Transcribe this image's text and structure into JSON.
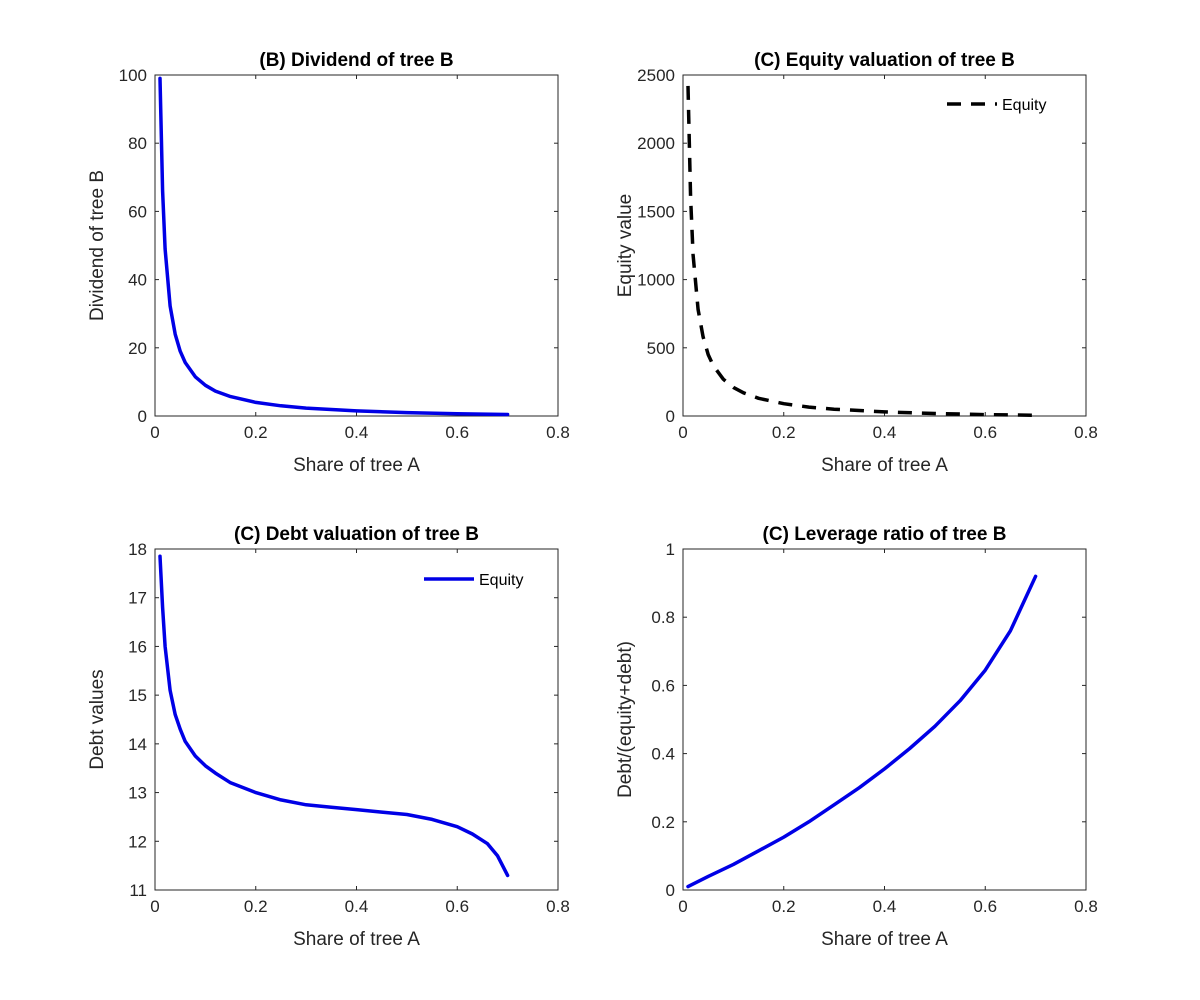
{
  "chart_data": [
    {
      "type": "line",
      "title": "(B) Dividend of tree B",
      "xlabel": "Share of tree A",
      "ylabel": "Dividend of tree B",
      "xlim": [
        0,
        0.8
      ],
      "ylim": [
        0,
        100
      ],
      "xticks": [
        0,
        0.2,
        0.4,
        0.6,
        0.8
      ],
      "yticks": [
        0,
        20,
        40,
        60,
        80,
        100
      ],
      "xtick_labels": [
        "0",
        "0.2",
        "0.4",
        "0.6",
        "0.8"
      ],
      "ytick_labels": [
        "0",
        "20",
        "40",
        "60",
        "80",
        "100"
      ],
      "grid": false,
      "legend": null,
      "series": [
        {
          "name": "",
          "color": "#0000e6",
          "style": "solid",
          "x": [
            0.01,
            0.015,
            0.02,
            0.03,
            0.04,
            0.05,
            0.06,
            0.08,
            0.1,
            0.12,
            0.15,
            0.2,
            0.25,
            0.3,
            0.4,
            0.5,
            0.6,
            0.7
          ],
          "y": [
            99,
            66,
            49,
            32.3,
            24,
            19,
            15.7,
            11.5,
            9,
            7.3,
            5.7,
            4,
            3,
            2.33,
            1.5,
            1,
            0.67,
            0.43
          ]
        }
      ]
    },
    {
      "type": "line",
      "title": "(C) Equity valuation of tree B",
      "xlabel": "Share of tree A",
      "ylabel": "Equity value",
      "xlim": [
        0,
        0.8
      ],
      "ylim": [
        0,
        2500
      ],
      "xticks": [
        0,
        0.2,
        0.4,
        0.6,
        0.8
      ],
      "yticks": [
        0,
        500,
        1000,
        1500,
        2000,
        2500
      ],
      "xtick_labels": [
        "0",
        "0.2",
        "0.4",
        "0.6",
        "0.8"
      ],
      "ytick_labels": [
        "0",
        "500",
        "1000",
        "1500",
        "2000",
        "2500"
      ],
      "grid": false,
      "legend": "top-right",
      "series": [
        {
          "name": "Equity",
          "color": "#000000",
          "style": "dashed",
          "x": [
            0.01,
            0.015,
            0.02,
            0.03,
            0.04,
            0.05,
            0.06,
            0.08,
            0.1,
            0.12,
            0.15,
            0.2,
            0.25,
            0.3,
            0.4,
            0.5,
            0.6,
            0.7
          ],
          "y": [
            2420,
            1600,
            1180,
            780,
            580,
            450,
            370,
            270,
            210,
            170,
            130,
            90,
            65,
            50,
            30,
            18,
            10,
            5
          ]
        }
      ]
    },
    {
      "type": "line",
      "title": "(C) Debt valuation of tree B",
      "xlabel": "Share of tree A",
      "ylabel": "Debt values",
      "xlim": [
        0,
        0.8
      ],
      "ylim": [
        11,
        18
      ],
      "xticks": [
        0,
        0.2,
        0.4,
        0.6,
        0.8
      ],
      "yticks": [
        11,
        12,
        13,
        14,
        15,
        16,
        17,
        18
      ],
      "xtick_labels": [
        "0",
        "0.2",
        "0.4",
        "0.6",
        "0.8"
      ],
      "ytick_labels": [
        "11",
        "12",
        "13",
        "14",
        "15",
        "16",
        "17",
        "18"
      ],
      "grid": false,
      "legend": "top-right",
      "series": [
        {
          "name": "Equity",
          "color": "#0000e6",
          "style": "solid",
          "x": [
            0.01,
            0.015,
            0.02,
            0.03,
            0.04,
            0.05,
            0.06,
            0.08,
            0.1,
            0.12,
            0.15,
            0.2,
            0.25,
            0.3,
            0.35,
            0.4,
            0.45,
            0.5,
            0.55,
            0.6,
            0.63,
            0.66,
            0.68,
            0.7
          ],
          "y": [
            17.85,
            16.8,
            16.0,
            15.1,
            14.6,
            14.3,
            14.05,
            13.75,
            13.55,
            13.4,
            13.2,
            13.0,
            12.85,
            12.75,
            12.7,
            12.65,
            12.6,
            12.55,
            12.45,
            12.3,
            12.15,
            11.95,
            11.7,
            11.3
          ]
        }
      ]
    },
    {
      "type": "line",
      "title": "(C) Leverage ratio of tree B",
      "xlabel": "Share of tree A",
      "ylabel": "Debt/(equity+debt)",
      "xlim": [
        0,
        0.8
      ],
      "ylim": [
        0,
        1
      ],
      "xticks": [
        0,
        0.2,
        0.4,
        0.6,
        0.8
      ],
      "yticks": [
        0,
        0.2,
        0.4,
        0.6,
        0.8,
        1
      ],
      "xtick_labels": [
        "0",
        "0.2",
        "0.4",
        "0.6",
        "0.8"
      ],
      "ytick_labels": [
        "0",
        "0.2",
        "0.4",
        "0.6",
        "0.8",
        "1"
      ],
      "grid": false,
      "legend": null,
      "series": [
        {
          "name": "",
          "color": "#0000e6",
          "style": "solid",
          "x": [
            0.01,
            0.05,
            0.1,
            0.15,
            0.2,
            0.25,
            0.3,
            0.35,
            0.4,
            0.45,
            0.5,
            0.55,
            0.6,
            0.65,
            0.7
          ],
          "y": [
            0.01,
            0.04,
            0.075,
            0.115,
            0.155,
            0.2,
            0.25,
            0.3,
            0.355,
            0.415,
            0.48,
            0.555,
            0.645,
            0.76,
            0.92
          ]
        }
      ]
    }
  ]
}
